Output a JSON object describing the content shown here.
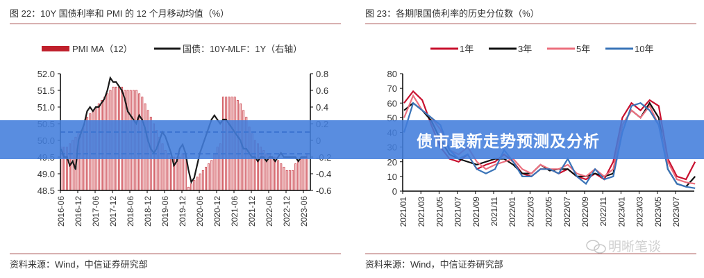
{
  "banner": {
    "title": "债市最新走势预测及分析"
  },
  "watermark": {
    "text": "明晰笔谈",
    "icon": "wechat-icon"
  },
  "chart_data": [
    {
      "type": "bar+line",
      "title": "图 22：10Y 国债利率和 PMI 的 12 个月移动均值（%）",
      "source": "资料来源：Wind，中信证券研究部",
      "legend": [
        "PMI MA（12）",
        "国债：10Y-MLF：1Y（右轴）"
      ],
      "legend_placement": "top",
      "x_start": "2016-06",
      "xticks": [
        "2016-06",
        "2016-12",
        "2017-06",
        "2017-12",
        "2018-06",
        "2018-12",
        "2019-06",
        "2019-12",
        "2020-06",
        "2020-12",
        "2021-06",
        "2021-12",
        "2022-06",
        "2022-12",
        "2023-06"
      ],
      "ylim": [
        48.5,
        52.0
      ],
      "yticks": [
        "52.0",
        "51.5",
        "51.0",
        "50.5",
        "50.0",
        "49.5",
        "49.0",
        "48.5"
      ],
      "y2lim": [
        -0.6,
        0.8
      ],
      "y2ticks": [
        "0.8",
        "0.6",
        "0.4",
        "0.2",
        "0",
        "-0.2",
        "-0.4",
        "-0.6"
      ],
      "reference_lines": [
        50.25,
        49.6
      ],
      "colors": {
        "bar": "#c0202c",
        "bar_fill": "#f2c6c8",
        "line": "#1a1a1a",
        "ref": "#1f3f8f"
      },
      "series": [
        {
          "name": "PMI MA（12）",
          "axis": "left",
          "values": [
            49.8,
            49.8,
            49.8,
            49.9,
            50.0,
            50.1,
            50.2,
            50.3,
            50.5,
            50.7,
            50.8,
            50.9,
            51.0,
            51.1,
            51.2,
            51.3,
            51.4,
            51.5,
            51.6,
            51.6,
            51.6,
            51.6,
            51.5,
            51.5,
            51.5,
            51.5,
            51.5,
            51.4,
            51.3,
            51.1,
            50.9,
            50.7,
            50.5,
            50.3,
            50.1,
            49.9,
            49.7,
            49.6,
            49.5,
            49.5,
            49.5,
            49.5,
            49.6,
            49.6,
            48.6,
            48.7,
            48.8,
            48.9,
            49.0,
            49.1,
            49.2,
            49.3,
            49.4,
            49.6,
            49.8,
            49.9,
            51.3,
            51.3,
            51.3,
            51.3,
            51.3,
            51.2,
            51.1,
            50.9,
            50.7,
            50.4,
            50.2,
            50.0,
            49.9,
            49.8,
            49.7,
            49.6,
            49.6,
            49.5,
            49.5,
            49.4,
            49.3,
            49.2,
            49.1,
            49.1,
            49.1,
            49.3,
            49.4,
            49.5,
            49.5,
            49.6
          ]
        },
        {
          "name": "国债：10Y-MLF：1Y（右轴）",
          "axis": "right",
          "values": [
            -0.1,
            -0.2,
            -0.2,
            -0.3,
            -0.25,
            -0.35,
            0.0,
            0.1,
            0.2,
            0.35,
            0.4,
            0.35,
            0.4,
            0.4,
            0.45,
            0.5,
            0.6,
            0.75,
            0.7,
            0.7,
            0.65,
            0.6,
            0.5,
            0.35,
            0.3,
            0.25,
            0.2,
            0.3,
            0.25,
            0.15,
            0.0,
            -0.1,
            -0.15,
            -0.1,
            0.0,
            0.1,
            0.05,
            -0.05,
            -0.15,
            -0.3,
            -0.25,
            -0.1,
            -0.05,
            -0.15,
            -0.35,
            -0.5,
            -0.45,
            -0.3,
            -0.15,
            -0.05,
            0.05,
            0.15,
            0.25,
            0.3,
            0.25,
            0.2,
            0.25,
            0.25,
            0.2,
            0.15,
            0.1,
            0.05,
            0.0,
            -0.1,
            -0.1,
            -0.15,
            -0.2,
            -0.2,
            -0.25,
            -0.2,
            -0.2,
            -0.25,
            -0.2,
            -0.2,
            -0.25,
            -0.2,
            -0.15,
            -0.2,
            -0.2,
            -0.2,
            -0.2,
            -0.2,
            -0.25,
            -0.2,
            -0.2,
            -0.2
          ]
        }
      ]
    },
    {
      "type": "line",
      "title": "图 23：各期限国债利率的历史分位数（%）",
      "source": "资料来源：Wind，中信证券研究部",
      "legend_placement": "top",
      "x_start": "2021/01",
      "xticks": [
        "2021/01",
        "2021/03",
        "2021/05",
        "2021/07",
        "2021/09",
        "2021/11",
        "2022/01",
        "2022/03",
        "2022/05",
        "2022/07",
        "2022/09",
        "2022/11",
        "2023/01",
        "2023/03",
        "2023/05",
        "2023/07"
      ],
      "ylim": [
        0,
        80
      ],
      "yticks": [
        "80",
        "70",
        "60",
        "50",
        "40",
        "30",
        "20",
        "10",
        "0"
      ],
      "series": [
        {
          "name": "1年",
          "color": "#c8102e",
          "values": [
            60,
            68,
            62,
            45,
            30,
            22,
            20,
            25,
            15,
            18,
            20,
            25,
            20,
            12,
            10,
            15,
            15,
            12,
            15,
            10,
            8,
            12,
            8,
            20,
            50,
            60,
            55,
            62,
            58,
            22,
            10,
            8,
            20
          ]
        },
        {
          "name": "3年",
          "color": "#111111",
          "values": [
            55,
            60,
            55,
            48,
            35,
            25,
            22,
            20,
            18,
            20,
            22,
            22,
            18,
            12,
            12,
            18,
            14,
            15,
            15,
            10,
            10,
            12,
            10,
            12,
            45,
            55,
            50,
            60,
            50,
            15,
            5,
            3,
            10
          ]
        },
        {
          "name": "5年",
          "color": "#ec6f7e",
          "values": [
            50,
            65,
            55,
            50,
            42,
            28,
            25,
            30,
            20,
            15,
            18,
            20,
            22,
            15,
            12,
            18,
            15,
            15,
            18,
            12,
            10,
            15,
            10,
            15,
            45,
            55,
            50,
            58,
            45,
            20,
            8,
            6,
            5
          ]
        },
        {
          "name": "10年",
          "color": "#3a74b8",
          "values": [
            40,
            60,
            55,
            50,
            45,
            28,
            22,
            25,
            15,
            12,
            15,
            28,
            20,
            10,
            10,
            15,
            15,
            12,
            22,
            10,
            5,
            15,
            8,
            10,
            40,
            58,
            60,
            55,
            45,
            15,
            5,
            3,
            2
          ]
        }
      ]
    }
  ]
}
